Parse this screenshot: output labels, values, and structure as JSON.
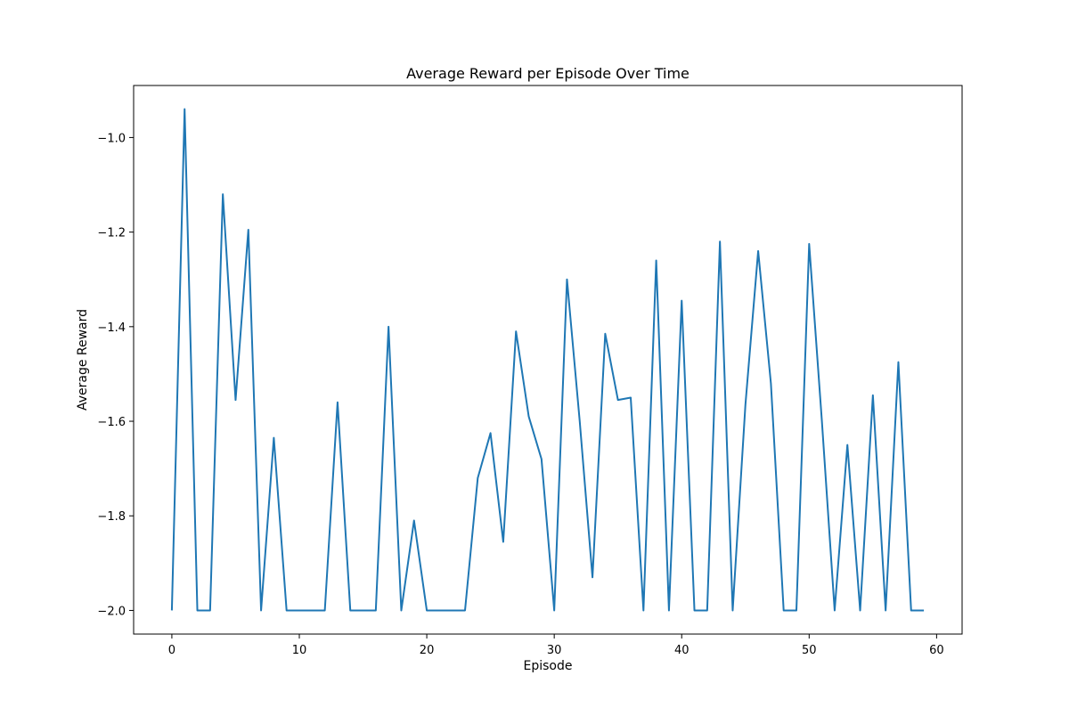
{
  "chart_data": {
    "type": "line",
    "title": "Average Reward per Episode Over Time",
    "xlabel": "Episode",
    "ylabel": "Average Reward",
    "xlim": [
      -3,
      62
    ],
    "ylim": [
      -2.05,
      -0.89
    ],
    "xticks": [
      0,
      10,
      20,
      30,
      40,
      50,
      60
    ],
    "yticks": [
      -2.0,
      -1.8,
      -1.6,
      -1.4,
      -1.2,
      -1.0
    ],
    "ytick_labels": [
      "−2.0",
      "−1.8",
      "−1.6",
      "−1.4",
      "−1.2",
      "−1.0"
    ],
    "grid": false,
    "legend": "none",
    "colors": {
      "line": "#1f77b4"
    },
    "series": [
      {
        "x": [
          0,
          1,
          2,
          3,
          4,
          5,
          6,
          7,
          8,
          9,
          10,
          11,
          12,
          13,
          14,
          15,
          16,
          17,
          18,
          19,
          20,
          21,
          22,
          23,
          24,
          25,
          26,
          27,
          28,
          29,
          30,
          31,
          32,
          33,
          34,
          35,
          36,
          37,
          38,
          39,
          40,
          41,
          42,
          43,
          44,
          45,
          46,
          47,
          48,
          49,
          50,
          51,
          52,
          53,
          54,
          55,
          56,
          57,
          58,
          59
        ],
        "values": [
          -2.0,
          -0.94,
          -2.0,
          -2.0,
          -1.12,
          -1.555,
          -1.195,
          -2.0,
          -1.635,
          -2.0,
          -2.0,
          -2.0,
          -2.0,
          -1.56,
          -2.0,
          -2.0,
          -2.0,
          -1.4,
          -2.0,
          -1.81,
          -2.0,
          -2.0,
          -2.0,
          -2.0,
          -1.72,
          -1.625,
          -1.855,
          -1.41,
          -1.59,
          -1.68,
          -2.0,
          -1.3,
          -1.6,
          -1.93,
          -1.415,
          -1.555,
          -1.55,
          -2.0,
          -1.26,
          -2.0,
          -1.345,
          -2.0,
          -2.0,
          -1.22,
          -2.0,
          -1.565,
          -1.24,
          -1.52,
          -2.0,
          -2.0,
          -1.225,
          -1.6,
          -2.0,
          -1.65,
          -2.0,
          -1.545,
          -2.0,
          -1.475,
          -2.0,
          -2.0
        ]
      }
    ]
  }
}
